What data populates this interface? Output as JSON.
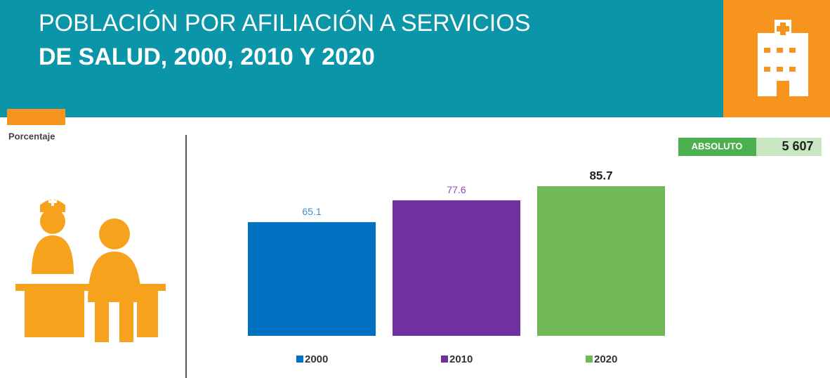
{
  "header": {
    "title_line1": "POBLACIÓN POR AFILIACIÓN A SERVICIOS",
    "title_line2": "DE SALUD,  2000, 2010 Y 2020"
  },
  "absolute": {
    "label": "ABSOLUTO",
    "value": "5 607"
  },
  "chart_data": {
    "type": "bar",
    "y_label": "Porcentaje",
    "categories": [
      "2000",
      "2010",
      "2020"
    ],
    "values": [
      65.1,
      77.6,
      85.7
    ],
    "colors": [
      "#0070c0",
      "#7030a0",
      "#70b956"
    ],
    "label_colors": [
      "#3d8fd1",
      "#8a4cbf",
      "#222222"
    ]
  }
}
